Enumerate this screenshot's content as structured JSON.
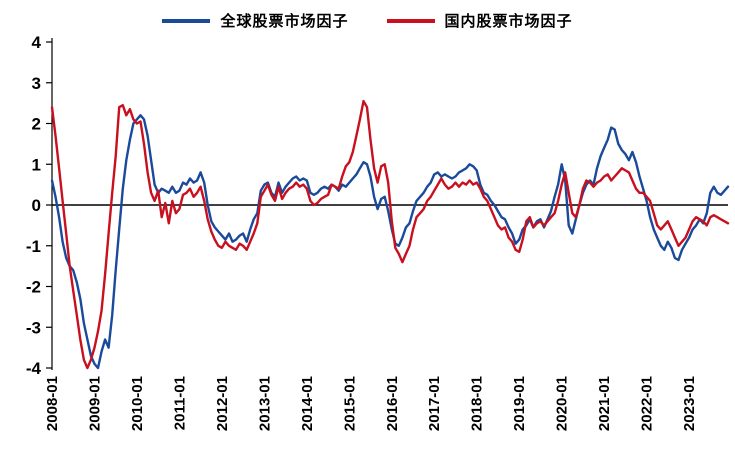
{
  "colors": {
    "global": "#1a4a9a",
    "domestic": "#c8101e",
    "axis": "#000000"
  },
  "legend": {
    "global_label": "全球股票市场因子",
    "domestic_label": "国内股票市场因子"
  },
  "chart_data": {
    "type": "line",
    "title": "",
    "xlabel": "",
    "ylabel": "",
    "ylim": [
      -4,
      4
    ],
    "y_ticks": [
      4,
      3,
      2,
      1,
      0,
      -1,
      -2,
      -3,
      -4
    ],
    "x_tick_labels": [
      "2008-01",
      "2009-01",
      "2010-01",
      "2011-01",
      "2012-01",
      "2013-01",
      "2014-01",
      "2015-01",
      "2016-01",
      "2017-01",
      "2018-01",
      "2019-01",
      "2020-01",
      "2021-01",
      "2022-01",
      "2023-01"
    ],
    "x_tick_month_index": [
      0,
      12,
      24,
      36,
      48,
      60,
      72,
      84,
      96,
      108,
      120,
      132,
      144,
      156,
      168,
      180
    ],
    "x_start": "2008-01",
    "x_frequency": "monthly",
    "grid": false,
    "legend_position": "top",
    "series": [
      {
        "name": "全球股票市场因子",
        "color": "#1a4a9a",
        "values": [
          0.6,
          0.2,
          -0.3,
          -0.9,
          -1.3,
          -1.5,
          -1.6,
          -1.9,
          -2.3,
          -2.9,
          -3.3,
          -3.7,
          -3.9,
          -4.0,
          -3.6,
          -3.3,
          -3.5,
          -2.7,
          -1.6,
          -0.6,
          0.4,
          1.1,
          1.6,
          2.0,
          2.1,
          2.2,
          2.1,
          1.7,
          1.1,
          0.5,
          0.3,
          0.4,
          0.35,
          0.3,
          0.45,
          0.3,
          0.35,
          0.55,
          0.5,
          0.65,
          0.55,
          0.6,
          0.8,
          0.55,
          0.0,
          -0.4,
          -0.55,
          -0.65,
          -0.75,
          -0.85,
          -0.7,
          -0.9,
          -0.85,
          -0.75,
          -0.7,
          -0.9,
          -0.6,
          -0.35,
          -0.2,
          0.35,
          0.5,
          0.55,
          0.3,
          0.2,
          0.55,
          0.3,
          0.45,
          0.55,
          0.65,
          0.7,
          0.6,
          0.65,
          0.6,
          0.3,
          0.25,
          0.3,
          0.4,
          0.45,
          0.4,
          0.5,
          0.45,
          0.35,
          0.5,
          0.45,
          0.55,
          0.65,
          0.75,
          0.9,
          1.05,
          1.0,
          0.7,
          0.2,
          -0.1,
          0.15,
          0.2,
          -0.15,
          -0.6,
          -0.95,
          -1.0,
          -0.8,
          -0.55,
          -0.45,
          -0.15,
          0.1,
          0.2,
          0.3,
          0.45,
          0.55,
          0.75,
          0.8,
          0.7,
          0.75,
          0.7,
          0.65,
          0.7,
          0.8,
          0.85,
          0.9,
          1.0,
          0.95,
          0.85,
          0.5,
          0.3,
          0.25,
          0.1,
          0.0,
          -0.15,
          -0.3,
          -0.35,
          -0.55,
          -0.7,
          -0.95,
          -0.85,
          -0.6,
          -0.5,
          -0.35,
          -0.55,
          -0.4,
          -0.35,
          -0.55,
          -0.35,
          -0.15,
          0.2,
          0.5,
          1.0,
          0.6,
          -0.5,
          -0.7,
          -0.35,
          0.0,
          0.3,
          0.5,
          0.6,
          0.5,
          0.9,
          1.2,
          1.4,
          1.6,
          1.9,
          1.85,
          1.5,
          1.35,
          1.25,
          1.1,
          1.3,
          1.05,
          0.7,
          0.4,
          0.1,
          -0.3,
          -0.6,
          -0.8,
          -1.0,
          -1.1,
          -0.9,
          -1.05,
          -1.3,
          -1.35,
          -1.1,
          -0.95,
          -0.8,
          -0.6,
          -0.5,
          -0.35,
          -0.45,
          -0.2,
          0.3,
          0.45,
          0.3,
          0.25,
          0.35,
          0.45
        ]
      },
      {
        "name": "国内股票市场因子",
        "color": "#c8101e",
        "values": [
          2.4,
          1.7,
          0.9,
          0.1,
          -0.7,
          -1.5,
          -2.1,
          -2.7,
          -3.3,
          -3.8,
          -4.0,
          -3.8,
          -3.5,
          -3.1,
          -2.6,
          -1.7,
          -0.7,
          0.3,
          1.2,
          2.4,
          2.45,
          2.2,
          2.35,
          2.1,
          2.0,
          2.05,
          1.5,
          0.8,
          0.3,
          0.1,
          0.35,
          -0.3,
          0.05,
          -0.45,
          0.1,
          -0.2,
          -0.1,
          0.25,
          0.3,
          0.4,
          0.2,
          0.3,
          0.45,
          0.1,
          -0.35,
          -0.65,
          -0.85,
          -1.0,
          -1.05,
          -0.9,
          -1.0,
          -1.05,
          -1.1,
          -0.95,
          -1.0,
          -1.1,
          -0.9,
          -0.7,
          -0.45,
          0.2,
          0.35,
          0.5,
          0.25,
          0.1,
          0.45,
          0.15,
          0.3,
          0.4,
          0.45,
          0.55,
          0.45,
          0.5,
          0.4,
          0.1,
          0.0,
          0.05,
          0.15,
          0.2,
          0.25,
          0.5,
          0.45,
          0.4,
          0.7,
          0.95,
          1.05,
          1.3,
          1.7,
          2.1,
          2.55,
          2.4,
          1.6,
          0.9,
          0.55,
          0.95,
          1.0,
          0.55,
          -0.4,
          -1.05,
          -1.2,
          -1.4,
          -1.2,
          -1.0,
          -0.6,
          -0.3,
          -0.2,
          -0.1,
          0.1,
          0.2,
          0.35,
          0.5,
          0.65,
          0.5,
          0.4,
          0.45,
          0.55,
          0.45,
          0.55,
          0.5,
          0.6,
          0.5,
          0.55,
          0.4,
          0.2,
          0.1,
          -0.1,
          -0.3,
          -0.5,
          -0.6,
          -0.55,
          -0.8,
          -0.9,
          -1.1,
          -1.15,
          -0.85,
          -0.4,
          -0.3,
          -0.55,
          -0.45,
          -0.4,
          -0.5,
          -0.4,
          -0.3,
          -0.2,
          0.1,
          0.5,
          0.8,
          0.3,
          -0.2,
          -0.3,
          0.0,
          0.4,
          0.6,
          0.55,
          0.45,
          0.55,
          0.6,
          0.7,
          0.75,
          0.6,
          0.7,
          0.8,
          0.9,
          0.85,
          0.8,
          0.6,
          0.4,
          0.3,
          0.3,
          0.2,
          0.1,
          -0.2,
          -0.5,
          -0.6,
          -0.5,
          -0.4,
          -0.6,
          -0.8,
          -1.0,
          -0.9,
          -0.8,
          -0.6,
          -0.4,
          -0.3,
          -0.35,
          -0.4,
          -0.5,
          -0.3,
          -0.25,
          -0.3,
          -0.35,
          -0.4,
          -0.45
        ]
      }
    ]
  }
}
